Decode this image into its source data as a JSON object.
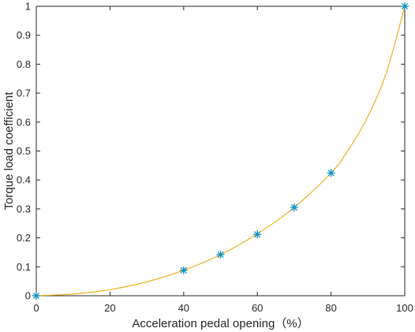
{
  "chart_data": {
    "type": "line",
    "title": "",
    "xlabel": "Acceleration pedal opening（%）",
    "ylabel": "Torque load coefficient",
    "xlim": [
      0,
      100
    ],
    "ylim": [
      0,
      1
    ],
    "x_ticks": [
      0,
      20,
      40,
      60,
      80,
      100
    ],
    "y_ticks": [
      0,
      0.1,
      0.2,
      0.3,
      0.4,
      0.5,
      0.6,
      0.7,
      0.8,
      0.9,
      1
    ],
    "grid": false,
    "legend": "none",
    "series": [
      {
        "kind": "curve",
        "color": "#EDB120",
        "x": [
          0,
          10,
          20,
          30,
          40,
          50,
          60,
          70,
          80,
          85,
          90,
          95,
          100
        ],
        "y": [
          0,
          0.006,
          0.021,
          0.048,
          0.088,
          0.142,
          0.214,
          0.305,
          0.424,
          0.51,
          0.62,
          0.77,
          1.0
        ]
      },
      {
        "kind": "markers",
        "marker": "asterisk",
        "color": "#0F8FBF",
        "x": [
          0,
          40,
          50,
          60,
          70,
          80,
          100
        ],
        "y": [
          0,
          0.088,
          0.142,
          0.212,
          0.305,
          0.424,
          1.0
        ]
      }
    ]
  }
}
